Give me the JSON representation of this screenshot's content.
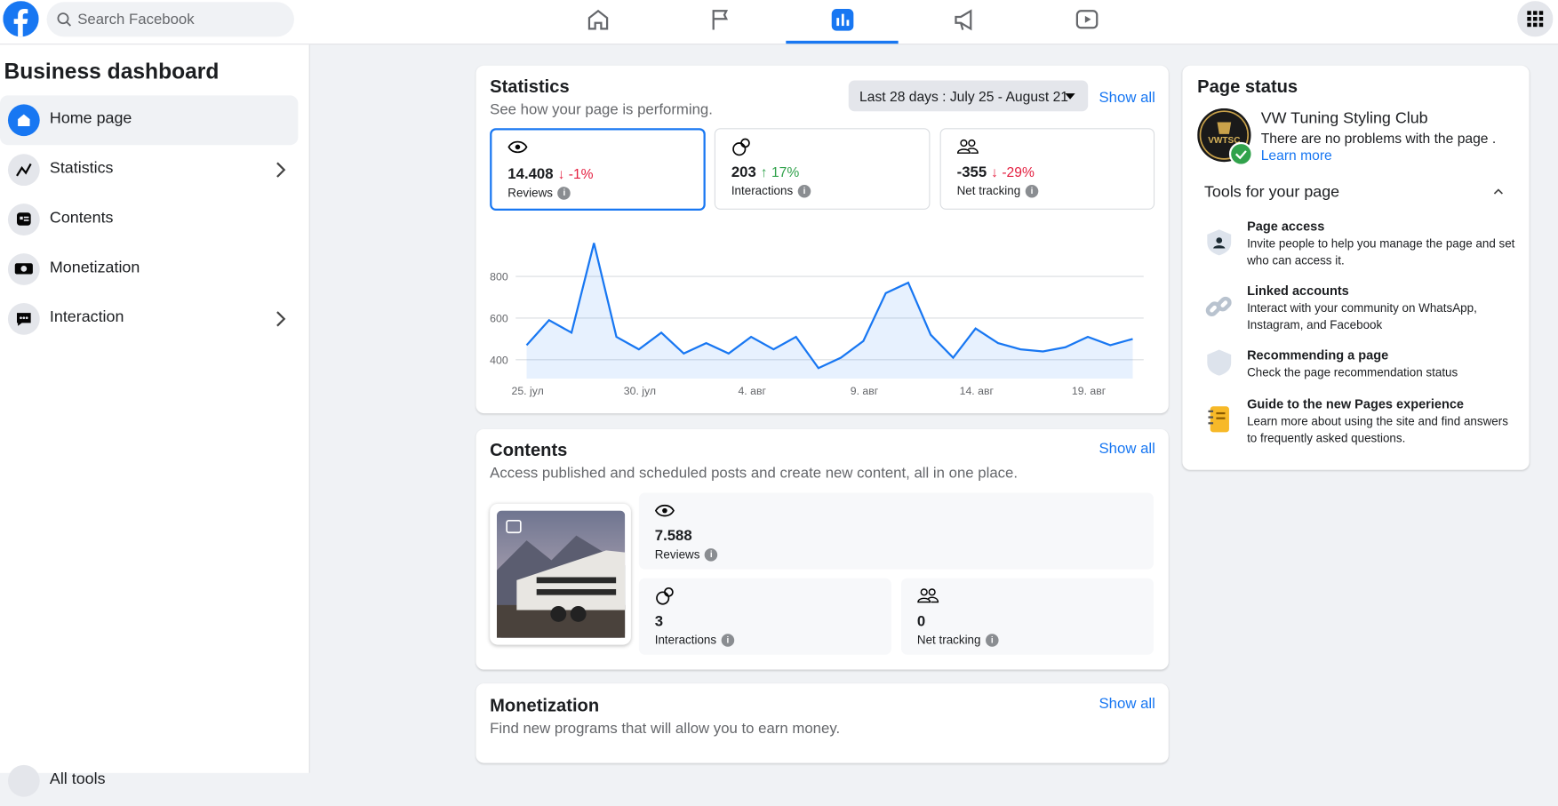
{
  "search_placeholder": "Search Facebook",
  "sidebar": {
    "title": "Business dashboard",
    "items": [
      "Home page",
      "Statistics",
      "Contents",
      "Monetization",
      "Interaction",
      "All tools"
    ]
  },
  "statistics": {
    "title": "Statistics",
    "subtitle": "See how your page is performing.",
    "date_range": "Last 28 days : July 25 - August 21",
    "show_all": "Show all",
    "metrics": [
      {
        "value": "14.408",
        "change": "↓ -1%",
        "label": "Reviews"
      },
      {
        "value": "203",
        "change": "↑ 17%",
        "label": "Interactions"
      },
      {
        "value": "-355",
        "change": "↓ -29%",
        "label": "Net tracking"
      }
    ]
  },
  "chart_data": {
    "type": "line",
    "categories": [
      "25. јул",
      null,
      null,
      null,
      null,
      "30. јул",
      null,
      null,
      null,
      null,
      "4. авг",
      null,
      null,
      null,
      null,
      "9. авг",
      null,
      null,
      null,
      null,
      "14. авг",
      null,
      null,
      null,
      null,
      "19. авг",
      null,
      null
    ],
    "values": [
      470,
      590,
      530,
      960,
      510,
      450,
      530,
      430,
      480,
      430,
      510,
      450,
      510,
      360,
      410,
      490,
      720,
      770,
      520,
      410,
      550,
      480,
      450,
      440,
      460,
      510,
      470,
      500
    ],
    "ylim": [
      310,
      1030
    ],
    "yticks": [
      400,
      600,
      800
    ],
    "grid": true,
    "color": "#1877f2"
  },
  "contents": {
    "title": "Contents",
    "subtitle": "Access published and scheduled posts and create new content, all in one place.",
    "show_all": "Show all",
    "metrics": [
      {
        "value": "7.588",
        "label": "Reviews"
      },
      {
        "value": "3",
        "label": "Interactions"
      },
      {
        "value": "0",
        "label": "Net tracking"
      }
    ]
  },
  "monetization": {
    "title": "Monetization",
    "subtitle": "Find new programs that will allow you to earn money.",
    "show_all": "Show all"
  },
  "page_status": {
    "title": "Page status",
    "page_name": "VW Tuning Styling Club",
    "status": "There are no problems with the page .",
    "learn_more": "Learn more",
    "tools_title": "Tools for your page",
    "tools": [
      {
        "title": "Page access",
        "description": "Invite people to help you manage the page and set who can access it."
      },
      {
        "title": "Linked accounts",
        "description": "Interact with your community on WhatsApp, Instagram, and Facebook"
      },
      {
        "title": "Recommending a page",
        "description": "Check the page recommendation status"
      },
      {
        "title": "Guide to the new Pages experience",
        "description": "Learn more about using the site and find answers to frequently asked questions."
      }
    ]
  }
}
